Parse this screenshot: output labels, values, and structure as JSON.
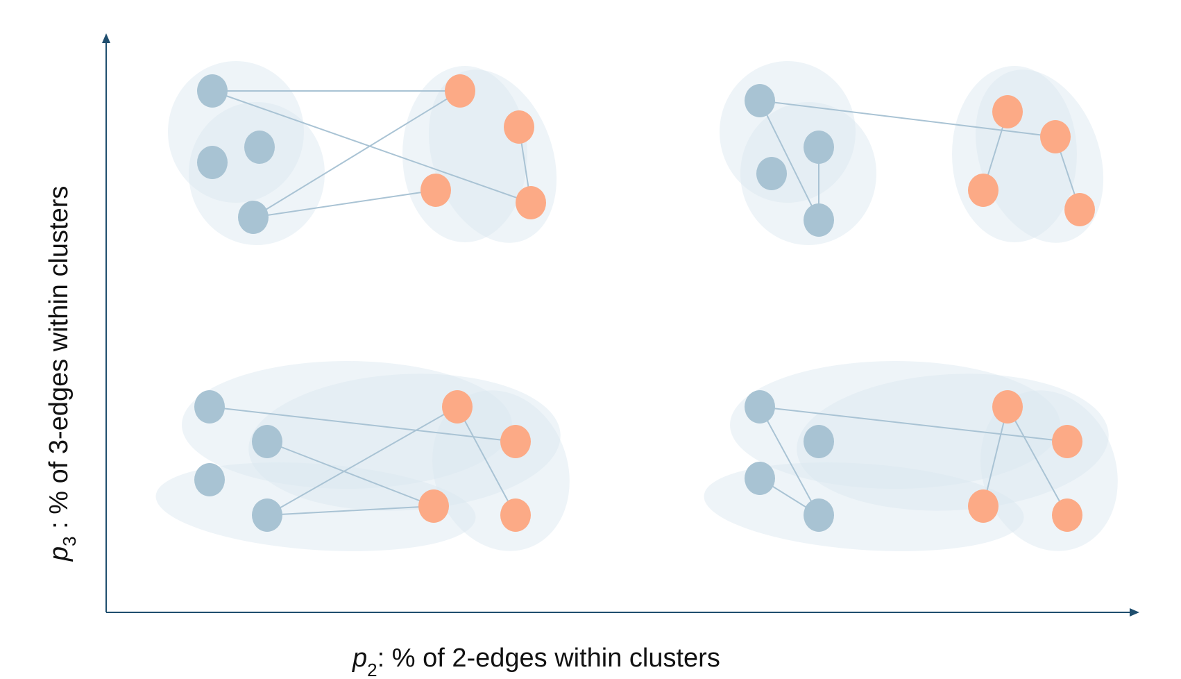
{
  "axes": {
    "x": {
      "variable": "p",
      "subscript": "2",
      "description": ": % of 2-edges within clusters"
    },
    "y": {
      "variable": "p",
      "subscript": "3",
      "description": " : % of 3-edges within clusters"
    }
  },
  "colors": {
    "axis": "#1f4e6e",
    "cluster_a_node": "#a8c3d3",
    "cluster_b_node": "#fcaa86",
    "edge": "#a9c3d4",
    "hyperedge_fill": "#d9e6ef"
  },
  "panels": [
    {
      "id": "high-p3-low-p2",
      "edges_2": [
        [
          "a1",
          "b1"
        ],
        [
          "a1",
          "b4"
        ],
        [
          "a4",
          "b1"
        ],
        [
          "a4",
          "b3"
        ],
        [
          "b2",
          "b4"
        ]
      ],
      "hyperedges_3": [
        [
          "a1",
          "a2",
          "a3"
        ],
        [
          "a2",
          "a3",
          "a4"
        ],
        [
          "b1",
          "b2",
          "b4"
        ],
        [
          "b1",
          "b2",
          "b3"
        ]
      ]
    },
    {
      "id": "high-p3-high-p2",
      "edges_2": [
        [
          "a1",
          "a4"
        ],
        [
          "a3",
          "a4"
        ],
        [
          "a1",
          "b2"
        ],
        [
          "b1",
          "b3"
        ],
        [
          "b2",
          "b4"
        ]
      ],
      "hyperedges_3": [
        [
          "a1",
          "a2",
          "a3"
        ],
        [
          "a2",
          "a3",
          "a4"
        ],
        [
          "b1",
          "b2",
          "b4"
        ],
        [
          "b1",
          "b2",
          "b3"
        ]
      ]
    },
    {
      "id": "low-p3-low-p2",
      "edges_2": [
        [
          "a1",
          "b2"
        ],
        [
          "a2",
          "b3"
        ],
        [
          "a4",
          "b1"
        ],
        [
          "a4",
          "b3"
        ],
        [
          "b1",
          "b4"
        ]
      ],
      "hyperedges_3": [
        [
          "a1",
          "a2",
          "b1"
        ],
        [
          "a2",
          "b1",
          "b2"
        ],
        [
          "a3",
          "a4",
          "b3"
        ],
        [
          "b1",
          "b2",
          "b4"
        ]
      ]
    },
    {
      "id": "low-p3-high-p2",
      "edges_2": [
        [
          "a1",
          "b2"
        ],
        [
          "a1",
          "a4"
        ],
        [
          "a3",
          "a4"
        ],
        [
          "b1",
          "b3"
        ],
        [
          "b1",
          "b4"
        ]
      ],
      "hyperedges_3": [
        [
          "a1",
          "a2",
          "b1"
        ],
        [
          "a2",
          "b1",
          "b2"
        ],
        [
          "a3",
          "a4",
          "b3"
        ],
        [
          "b1",
          "b2",
          "b4"
        ]
      ]
    }
  ]
}
